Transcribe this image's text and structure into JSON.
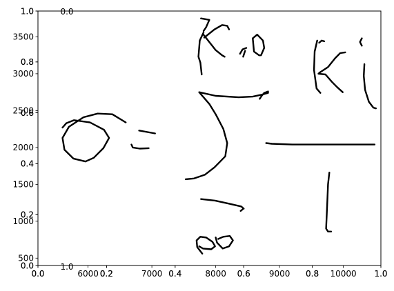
{
  "chart_data": {
    "type": "line",
    "title": "",
    "xlabel": "",
    "ylabel": "",
    "grid": false,
    "content": "handwritten-strokes",
    "axes": [
      {
        "role": "stroke-axes",
        "xlim": [
          5215,
          10588
        ],
        "ylim": [
          400,
          3850
        ],
        "x_ticks": [
          "6000",
          "7000",
          "8000",
          "9000",
          "10000"
        ],
        "y_ticks": [
          "500",
          "1000",
          "1500",
          "2000",
          "2500",
          "3000",
          "3500"
        ],
        "x_tick_values": [
          6000,
          7000,
          8000,
          9000,
          10000
        ],
        "y_tick_values": [
          500,
          1000,
          1500,
          2000,
          2500,
          3000,
          3500
        ]
      },
      {
        "role": "unit-axes-a",
        "xlim": [
          0,
          1
        ],
        "ylim": [
          0,
          1
        ],
        "x_ticks": [
          "0.0",
          "0.2",
          "0.4",
          "0.6",
          "0.8",
          "1.0"
        ],
        "y_ticks": [
          "0.0",
          "0.2",
          "0.4",
          "0.6",
          "0.8",
          "1.0"
        ],
        "x_tick_values": [
          0,
          0.2,
          0.4,
          0.6,
          0.8,
          1.0
        ],
        "y_tick_values": [
          0,
          0.2,
          0.4,
          0.6,
          0.8,
          1.0
        ]
      },
      {
        "role": "unit-axes-b",
        "xlim": [
          0,
          1
        ],
        "ylim": [
          0,
          1
        ],
        "x_ticks": [
          "0.0",
          "0.2",
          "0.4",
          "0.6",
          "0.8",
          "1.0"
        ],
        "y_ticks": [
          "0.0",
          "0.2",
          "0.4",
          "0.6",
          "0.8",
          "1.0"
        ],
        "x_tick_values": [
          0,
          0.2,
          0.4,
          0.6,
          0.8,
          1.0
        ],
        "y_tick_values": [
          0,
          0.2,
          0.4,
          0.6,
          0.8,
          1.0
        ]
      },
      {
        "role": "overlay-axes",
        "x_tick_label": "0.2",
        "x_tick_value": 0.2,
        "top_label": "0.0",
        "bottom_label": "1.0"
      }
    ],
    "series": [
      {
        "points": [
          [
            6590,
            2340
          ],
          [
            6380,
            2450
          ],
          [
            6150,
            2460
          ],
          [
            5930,
            2410
          ],
          [
            5700,
            2280
          ],
          [
            5600,
            2130
          ],
          [
            5630,
            1970
          ],
          [
            5770,
            1850
          ],
          [
            5960,
            1810
          ],
          [
            6090,
            1860
          ],
          [
            6240,
            1990
          ],
          [
            6330,
            2130
          ],
          [
            6250,
            2240
          ],
          [
            6030,
            2340
          ],
          [
            5780,
            2370
          ],
          [
            5660,
            2330
          ],
          [
            5600,
            2270
          ]
        ]
      },
      {
        "points": [
          [
            6800,
            2230
          ],
          [
            7050,
            2190
          ]
        ]
      },
      {
        "points": [
          [
            6680,
            2040
          ],
          [
            6700,
            2000
          ],
          [
            6810,
            1985
          ],
          [
            6950,
            1990
          ]
        ]
      },
      {
        "points": [
          [
            7810,
            3560
          ],
          [
            7750,
            3450
          ],
          [
            7730,
            3230
          ],
          [
            7760,
            3150
          ],
          [
            7780,
            2990
          ]
        ]
      },
      {
        "points": [
          [
            7770,
            3750
          ],
          [
            7900,
            3730
          ],
          [
            7850,
            3630
          ],
          [
            7810,
            3580
          ]
        ]
      },
      {
        "points": [
          [
            7800,
            3540
          ],
          [
            8000,
            3320
          ],
          [
            8100,
            3250
          ],
          [
            8140,
            3230
          ]
        ]
      },
      {
        "points": [
          [
            7820,
            3490
          ],
          [
            7980,
            3600
          ],
          [
            8100,
            3660
          ],
          [
            8180,
            3650
          ],
          [
            8210,
            3600
          ]
        ]
      },
      {
        "points": [
          [
            8380,
            3270
          ],
          [
            8420,
            3330
          ],
          [
            8480,
            3350
          ]
        ]
      },
      {
        "points": [
          [
            8460,
            3310
          ],
          [
            8430,
            3230
          ]
        ]
      },
      {
        "points": [
          [
            8680,
            3250
          ],
          [
            8600,
            3300
          ],
          [
            8580,
            3480
          ],
          [
            8650,
            3530
          ],
          [
            8740,
            3450
          ],
          [
            8760,
            3350
          ],
          [
            8710,
            3250
          ],
          [
            8680,
            3250
          ]
        ]
      },
      {
        "points": [
          [
            7740,
            2750
          ],
          [
            8000,
            2700
          ],
          [
            8360,
            2680
          ],
          [
            8580,
            2690
          ],
          [
            8740,
            2720
          ],
          [
            8820,
            2740
          ],
          [
            8820,
            2760
          ],
          [
            8760,
            2740
          ],
          [
            8720,
            2700
          ],
          [
            8690,
            2660
          ]
        ]
      },
      {
        "points": [
          [
            7750,
            2740
          ],
          [
            7900,
            2590
          ],
          [
            8000,
            2450
          ],
          [
            8120,
            2250
          ],
          [
            8180,
            2060
          ],
          [
            8150,
            1880
          ],
          [
            7980,
            1730
          ],
          [
            7830,
            1630
          ],
          [
            7660,
            1580
          ],
          [
            7530,
            1570
          ]
        ]
      },
      {
        "points": [
          [
            7770,
            1300
          ],
          [
            7990,
            1280
          ],
          [
            8200,
            1240
          ],
          [
            8400,
            1200
          ],
          [
            8440,
            1170
          ]
        ]
      },
      {
        "points": [
          [
            8420,
            1160
          ],
          [
            8390,
            1140
          ]
        ]
      },
      {
        "points": [
          [
            7790,
            560
          ],
          [
            7710,
            650
          ],
          [
            7700,
            740
          ],
          [
            7760,
            790
          ],
          [
            7850,
            780
          ],
          [
            7950,
            720
          ],
          [
            7990,
            660
          ],
          [
            7930,
            620
          ],
          [
            7800,
            630
          ],
          [
            7740,
            660
          ]
        ]
      },
      {
        "points": [
          [
            8040,
            760
          ],
          [
            8120,
            790
          ],
          [
            8220,
            800
          ],
          [
            8270,
            740
          ],
          [
            8210,
            660
          ],
          [
            8110,
            630
          ],
          [
            8020,
            710
          ],
          [
            8000,
            780
          ]
        ]
      },
      {
        "points": [
          [
            8790,
            2060
          ],
          [
            8880,
            2050
          ],
          [
            9200,
            2040
          ],
          [
            9700,
            2040
          ],
          [
            10120,
            2040
          ],
          [
            10490,
            2040
          ]
        ]
      },
      {
        "points": [
          [
            9780,
            1660
          ],
          [
            9760,
            1500
          ],
          [
            9740,
            1100
          ],
          [
            9730,
            900
          ],
          [
            9760,
            860
          ],
          [
            9810,
            860
          ]
        ]
      },
      {
        "points": [
          [
            9590,
            3450
          ],
          [
            9550,
            3300
          ],
          [
            9540,
            3050
          ],
          [
            9580,
            2800
          ],
          [
            9640,
            2740
          ]
        ]
      },
      {
        "points": [
          [
            9620,
            3420
          ],
          [
            9660,
            3450
          ],
          [
            9700,
            3440
          ]
        ]
      },
      {
        "points": [
          [
            9610,
            3000
          ],
          [
            9720,
            2990
          ],
          [
            9820,
            2890
          ],
          [
            9900,
            2820
          ],
          [
            9990,
            2750
          ]
        ]
      },
      {
        "points": [
          [
            9620,
            3010
          ],
          [
            9760,
            3090
          ],
          [
            9870,
            3210
          ],
          [
            9950,
            3280
          ],
          [
            10030,
            3290
          ]
        ]
      },
      {
        "points": [
          [
            10290,
            3480
          ],
          [
            10260,
            3430
          ],
          [
            10290,
            3380
          ]
        ]
      },
      {
        "points": [
          [
            10330,
            3130
          ],
          [
            10320,
            2970
          ],
          [
            10340,
            2780
          ],
          [
            10400,
            2620
          ],
          [
            10470,
            2540
          ],
          [
            10510,
            2530
          ]
        ]
      }
    ]
  }
}
